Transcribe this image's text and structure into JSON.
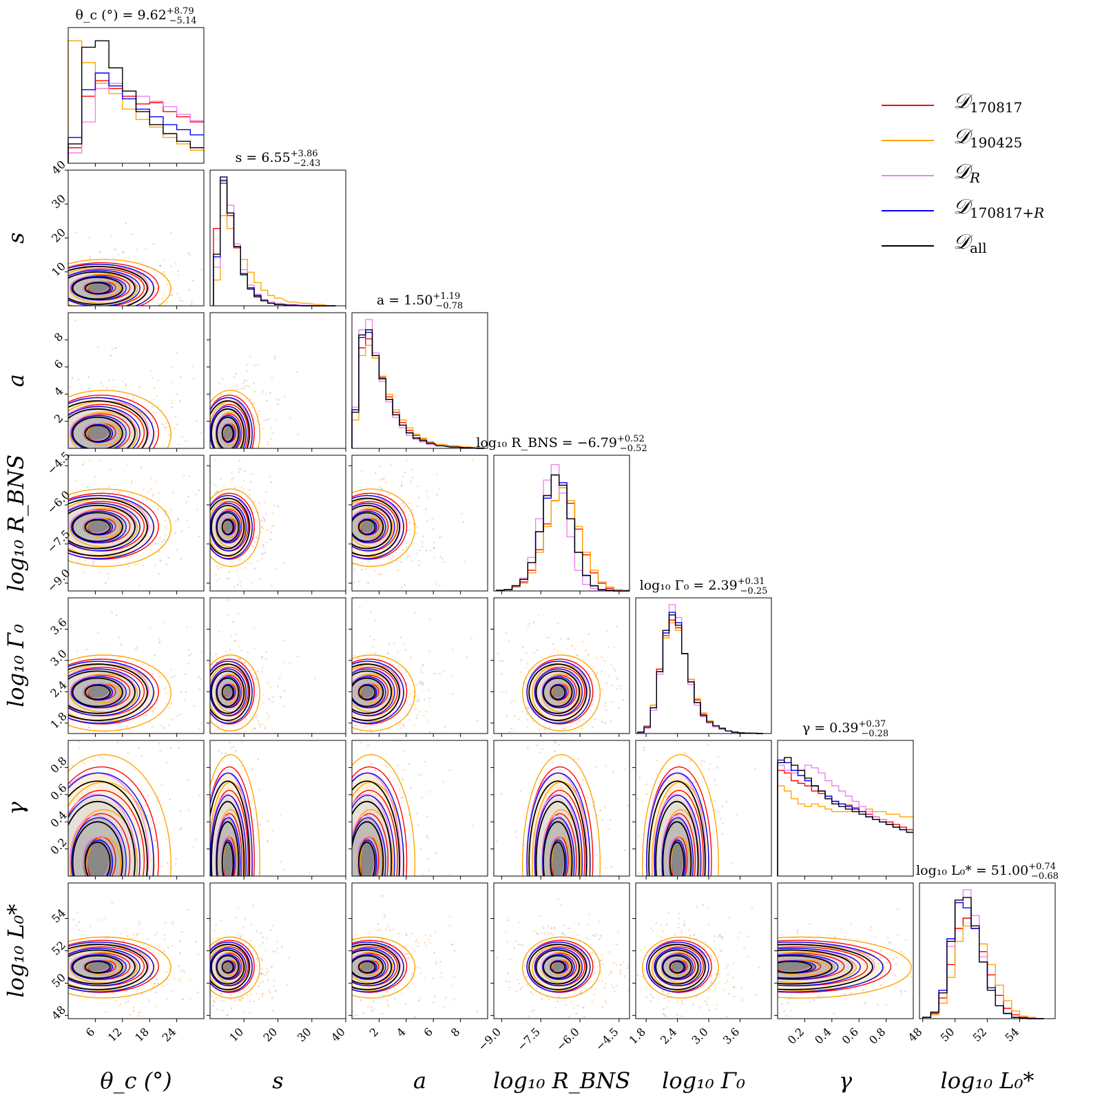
{
  "chart_data": {
    "type": "corner",
    "title": "",
    "parameters": [
      {
        "key": "theta_c",
        "axis_label": "θ_c (°)",
        "title": "θ_c (°) = 9.62",
        "median": 9.62,
        "plus": 8.79,
        "minus": 5.14,
        "plus_text": "+8.79",
        "minus_text": "−5.14",
        "range": [
          0,
          30
        ],
        "ticks": [
          6,
          12,
          18,
          24
        ],
        "tick_labels": [
          "6",
          "12",
          "18",
          "24"
        ]
      },
      {
        "key": "s",
        "axis_label": "s",
        "title": "s = 6.55",
        "median": 6.55,
        "plus": 3.86,
        "minus": 2.43,
        "plus_text": "+3.86",
        "minus_text": "−2.43",
        "range": [
          0,
          40
        ],
        "ticks": [
          10,
          20,
          30,
          40
        ],
        "tick_labels": [
          "10",
          "20",
          "30",
          "40"
        ]
      },
      {
        "key": "a",
        "axis_label": "a",
        "title": "a = 1.50",
        "median": 1.5,
        "plus": 1.19,
        "minus": 0.78,
        "plus_text": "+1.19",
        "minus_text": "−0.78",
        "range": [
          0,
          10
        ],
        "ticks": [
          2,
          4,
          6,
          8
        ],
        "tick_labels": [
          "2",
          "4",
          "6",
          "8"
        ]
      },
      {
        "key": "log10_R_BNS",
        "axis_label": "log₁₀ R_BNS",
        "title": "log₁₀ R_BNS = −6.79",
        "median": -6.79,
        "plus": 0.52,
        "minus": 0.52,
        "plus_text": "+0.52",
        "minus_text": "−0.52",
        "range": [
          -9.3,
          -4.1
        ],
        "ticks": [
          -9.0,
          -7.5,
          -6.0,
          -4.5
        ],
        "tick_labels": [
          "−9.0",
          "−7.5",
          "−6.0",
          "−4.5"
        ]
      },
      {
        "key": "log10_Gamma_0",
        "axis_label": "log₁₀ Γ₀",
        "title": "log₁₀ Γ₀ = 2.39",
        "median": 2.39,
        "plus": 0.31,
        "minus": 0.25,
        "plus_text": "+0.31",
        "minus_text": "−0.25",
        "range": [
          1.6,
          4.2
        ],
        "ticks": [
          1.8,
          2.4,
          3.0,
          3.6
        ],
        "tick_labels": [
          "1.8",
          "2.4",
          "3.0",
          "3.6"
        ]
      },
      {
        "key": "gamma",
        "axis_label": "γ",
        "title": "γ = 0.39",
        "median": 0.39,
        "plus": 0.37,
        "minus": 0.28,
        "plus_text": "+0.37",
        "minus_text": "−0.28",
        "range": [
          0,
          1
        ],
        "ticks": [
          0.2,
          0.4,
          0.6,
          0.8
        ],
        "tick_labels": [
          "0.2",
          "0.4",
          "0.6",
          "0.8"
        ]
      },
      {
        "key": "log10_L0",
        "axis_label": "log₁₀ L₀*",
        "title": "log₁₀ L₀* = 51.00",
        "median": 51.0,
        "plus": 0.74,
        "minus": 0.68,
        "plus_text": "+0.74",
        "minus_text": "−0.68",
        "range": [
          47.8,
          56.2
        ],
        "ticks": [
          48,
          50,
          52,
          54
        ],
        "tick_labels": [
          "48",
          "50",
          "52",
          "54"
        ]
      }
    ],
    "row_axis_labels": [
      "s",
      "a",
      "log₁₀ R_BNS",
      "log₁₀ Γ₀",
      "γ",
      "log₁₀ L₀*"
    ],
    "series": [
      {
        "name": "D_170817",
        "color": "#ff0000"
      },
      {
        "name": "D_190425",
        "color": "#ffa500"
      },
      {
        "name": "D_R",
        "color": "#ee82ee"
      },
      {
        "name": "D_170817+R",
        "color": "#0000ff"
      },
      {
        "name": "D_all",
        "color": "#000000"
      }
    ],
    "histograms": {
      "theta_c": {
        "bins": [
          1.5,
          4.5,
          7.5,
          10.5,
          13.5,
          16.5,
          19.5,
          22.5,
          25.5,
          28.5
        ],
        "D_170817": [
          0.12,
          0.52,
          0.64,
          0.58,
          0.52,
          0.46,
          0.47,
          0.4,
          0.36,
          0.32
        ],
        "D_190425": [
          0.95,
          0.78,
          0.62,
          0.54,
          0.42,
          0.34,
          0.28,
          0.2,
          0.15,
          0.1
        ],
        "D_R": [
          0.08,
          0.32,
          0.58,
          0.62,
          0.56,
          0.52,
          0.48,
          0.44,
          0.38,
          0.33
        ],
        "D_170817+R": [
          0.2,
          0.57,
          0.7,
          0.6,
          0.5,
          0.42,
          0.36,
          0.3,
          0.26,
          0.22
        ],
        "D_all": [
          0.15,
          0.9,
          0.95,
          0.74,
          0.56,
          0.4,
          0.3,
          0.23,
          0.17,
          0.12
        ]
      },
      "s": {
        "bins": [
          2,
          4,
          6,
          8,
          10,
          12,
          14,
          16,
          18,
          20,
          24,
          28,
          32,
          36
        ],
        "D_170817": [
          0.6,
          0.95,
          0.7,
          0.45,
          0.25,
          0.14,
          0.08,
          0.04,
          0.02,
          0.01,
          0.005,
          0.002,
          0,
          0
        ],
        "D_190425": [
          0.2,
          0.7,
          0.6,
          0.46,
          0.36,
          0.26,
          0.18,
          0.12,
          0.08,
          0.06,
          0.03,
          0.02,
          0.01,
          0
        ],
        "D_R": [
          0.3,
          0.98,
          0.78,
          0.48,
          0.28,
          0.16,
          0.09,
          0.05,
          0.03,
          0.02,
          0.01,
          0.005,
          0,
          0
        ],
        "D_170817+R": [
          0.38,
          0.97,
          0.72,
          0.46,
          0.25,
          0.14,
          0.08,
          0.04,
          0.02,
          0.01,
          0.005,
          0,
          0,
          0
        ],
        "D_all": [
          0.4,
          1.0,
          0.72,
          0.46,
          0.24,
          0.13,
          0.07,
          0.04,
          0.02,
          0.01,
          0.004,
          0,
          0,
          0
        ]
      },
      "a": {
        "bins": [
          0.25,
          0.75,
          1.25,
          1.75,
          2.25,
          2.75,
          3.25,
          3.75,
          4.25,
          4.75,
          5.25,
          5.75,
          6.5,
          7.5,
          8.5,
          9.5
        ],
        "D_170817": [
          0.3,
          0.78,
          0.85,
          0.72,
          0.55,
          0.4,
          0.28,
          0.2,
          0.14,
          0.1,
          0.07,
          0.05,
          0.03,
          0.02,
          0.01,
          0.005
        ],
        "D_190425": [
          0.22,
          0.72,
          0.8,
          0.7,
          0.56,
          0.42,
          0.3,
          0.22,
          0.16,
          0.11,
          0.08,
          0.05,
          0.03,
          0.02,
          0.01,
          0.005
        ],
        "D_R": [
          0.32,
          0.92,
          1.0,
          0.74,
          0.52,
          0.36,
          0.24,
          0.16,
          0.1,
          0.07,
          0.05,
          0.03,
          0.02,
          0.01,
          0.005,
          0
        ],
        "D_170817+R": [
          0.3,
          0.86,
          0.9,
          0.72,
          0.54,
          0.38,
          0.26,
          0.18,
          0.12,
          0.08,
          0.06,
          0.04,
          0.02,
          0.01,
          0.005,
          0
        ],
        "D_all": [
          0.28,
          0.88,
          0.92,
          0.72,
          0.54,
          0.38,
          0.26,
          0.18,
          0.12,
          0.08,
          0.06,
          0.04,
          0.02,
          0.01,
          0.005,
          0
        ]
      },
      "log10_R_BNS": {
        "bins": [
          -9.05,
          -8.75,
          -8.45,
          -8.15,
          -7.85,
          -7.55,
          -7.25,
          -6.95,
          -6.65,
          -6.35,
          -6.05,
          -5.75,
          -5.45,
          -5.15,
          -4.85,
          -4.55,
          -4.25
        ],
        "D_170817": [
          0.005,
          0.01,
          0.03,
          0.07,
          0.16,
          0.32,
          0.52,
          0.7,
          0.8,
          0.68,
          0.48,
          0.28,
          0.14,
          0.06,
          0.02,
          0.01,
          0.005
        ],
        "D_190425": [
          0.005,
          0.01,
          0.03,
          0.06,
          0.14,
          0.3,
          0.5,
          0.7,
          0.8,
          0.7,
          0.5,
          0.3,
          0.16,
          0.07,
          0.03,
          0.01,
          0.005
        ],
        "D_R": [
          0.005,
          0.01,
          0.04,
          0.1,
          0.26,
          0.56,
          0.86,
          0.98,
          0.76,
          0.42,
          0.16,
          0.05,
          0.02,
          0.005,
          0,
          0,
          0
        ],
        "D_170817+R": [
          0.005,
          0.01,
          0.04,
          0.09,
          0.22,
          0.46,
          0.72,
          0.9,
          0.84,
          0.56,
          0.3,
          0.12,
          0.04,
          0.01,
          0.005,
          0,
          0
        ],
        "D_all": [
          0.005,
          0.01,
          0.04,
          0.09,
          0.22,
          0.46,
          0.74,
          0.9,
          0.82,
          0.56,
          0.3,
          0.12,
          0.04,
          0.01,
          0.005,
          0,
          0
        ]
      },
      "log10_Gamma_0": {
        "bins": [
          1.7,
          1.82,
          1.94,
          2.06,
          2.18,
          2.3,
          2.42,
          2.54,
          2.66,
          2.78,
          2.9,
          3.02,
          3.14,
          3.26,
          3.38,
          3.5,
          3.62,
          3.74,
          3.86,
          3.98
        ],
        "D_170817": [
          0.01,
          0.06,
          0.22,
          0.5,
          0.76,
          0.88,
          0.82,
          0.62,
          0.42,
          0.26,
          0.15,
          0.09,
          0.06,
          0.04,
          0.02,
          0.01,
          0.006,
          0.004,
          0.002,
          0
        ],
        "D_190425": [
          0.01,
          0.06,
          0.22,
          0.48,
          0.74,
          0.86,
          0.8,
          0.62,
          0.42,
          0.27,
          0.16,
          0.1,
          0.06,
          0.04,
          0.02,
          0.01,
          0.006,
          0.004,
          0.002,
          0
        ],
        "D_R": [
          0.005,
          0.04,
          0.18,
          0.46,
          0.8,
          1.0,
          0.9,
          0.62,
          0.38,
          0.22,
          0.13,
          0.08,
          0.05,
          0.03,
          0.02,
          0.01,
          0.005,
          0.003,
          0.002,
          0
        ],
        "D_170817+R": [
          0.01,
          0.05,
          0.2,
          0.48,
          0.78,
          0.94,
          0.86,
          0.62,
          0.4,
          0.24,
          0.14,
          0.09,
          0.06,
          0.04,
          0.02,
          0.01,
          0.005,
          0.003,
          0.002,
          0
        ],
        "D_all": [
          0.01,
          0.05,
          0.2,
          0.48,
          0.8,
          0.92,
          0.84,
          0.62,
          0.4,
          0.24,
          0.14,
          0.09,
          0.06,
          0.04,
          0.02,
          0.01,
          0.005,
          0.003,
          0.002,
          0
        ]
      },
      "gamma": {
        "bins": [
          0.025,
          0.075,
          0.125,
          0.175,
          0.225,
          0.275,
          0.325,
          0.375,
          0.425,
          0.475,
          0.525,
          0.575,
          0.625,
          0.675,
          0.725,
          0.775,
          0.825,
          0.875,
          0.925,
          0.975
        ],
        "D_170817": [
          0.82,
          0.8,
          0.74,
          0.72,
          0.7,
          0.66,
          0.64,
          0.6,
          0.58,
          0.56,
          0.55,
          0.53,
          0.5,
          0.48,
          0.46,
          0.44,
          0.42,
          0.4,
          0.38,
          0.36
        ],
        "D_190425": [
          0.7,
          0.66,
          0.6,
          0.56,
          0.54,
          0.56,
          0.54,
          0.52,
          0.5,
          0.5,
          0.5,
          0.5,
          0.5,
          0.52,
          0.5,
          0.5,
          0.48,
          0.48,
          0.46,
          0.46
        ],
        "D_R": [
          0.86,
          0.82,
          0.8,
          0.82,
          0.86,
          0.84,
          0.8,
          0.74,
          0.7,
          0.66,
          0.62,
          0.58,
          0.54,
          0.5,
          0.46,
          0.44,
          0.4,
          0.38,
          0.36,
          0.34
        ],
        "D_170817+R": [
          0.9,
          0.88,
          0.82,
          0.78,
          0.74,
          0.7,
          0.66,
          0.62,
          0.58,
          0.56,
          0.54,
          0.52,
          0.5,
          0.46,
          0.44,
          0.42,
          0.4,
          0.38,
          0.36,
          0.34
        ],
        "D_all": [
          0.88,
          0.92,
          0.86,
          0.82,
          0.76,
          0.7,
          0.66,
          0.6,
          0.56,
          0.54,
          0.52,
          0.5,
          0.48,
          0.46,
          0.44,
          0.42,
          0.4,
          0.38,
          0.36,
          0.34
        ]
      },
      "log10_L0": {
        "bins": [
          48.25,
          48.75,
          49.25,
          49.75,
          50.25,
          50.75,
          51.25,
          51.75,
          52.25,
          52.75,
          53.25,
          53.75,
          54.25,
          54.75,
          55.25
        ],
        "D_170817": [
          0.01,
          0.04,
          0.16,
          0.42,
          0.7,
          0.78,
          0.7,
          0.52,
          0.34,
          0.18,
          0.08,
          0.03,
          0.01,
          0.005,
          0
        ],
        "D_190425": [
          0.01,
          0.03,
          0.12,
          0.32,
          0.6,
          0.72,
          0.7,
          0.58,
          0.42,
          0.26,
          0.14,
          0.06,
          0.02,
          0.01,
          0
        ],
        "D_R": [
          0.01,
          0.05,
          0.2,
          0.56,
          0.9,
          1.0,
          0.8,
          0.48,
          0.24,
          0.1,
          0.04,
          0.01,
          0.005,
          0,
          0
        ],
        "D_170817+R": [
          0.01,
          0.05,
          0.22,
          0.62,
          0.9,
          0.86,
          0.7,
          0.44,
          0.24,
          0.1,
          0.04,
          0.01,
          0.005,
          0,
          0
        ],
        "D_all": [
          0.01,
          0.05,
          0.2,
          0.6,
          0.92,
          0.94,
          0.72,
          0.44,
          0.22,
          0.1,
          0.04,
          0.01,
          0.005,
          0,
          0
        ]
      }
    },
    "modes": {
      "theta_c": 6.5,
      "s": 5.2,
      "a": 1.1,
      "log10_R_BNS": -6.85,
      "log10_Gamma_0": 2.39,
      "gamma": 0.1,
      "log10_L0": 51.0
    },
    "widths": {
      "theta_c": 5.5,
      "s": 3.2,
      "a": 1.2,
      "log10_R_BNS": 0.55,
      "log10_Gamma_0": 0.27,
      "gamma": 0.3,
      "log10_L0": 0.7
    },
    "legend": {
      "placement": "top-right"
    }
  }
}
